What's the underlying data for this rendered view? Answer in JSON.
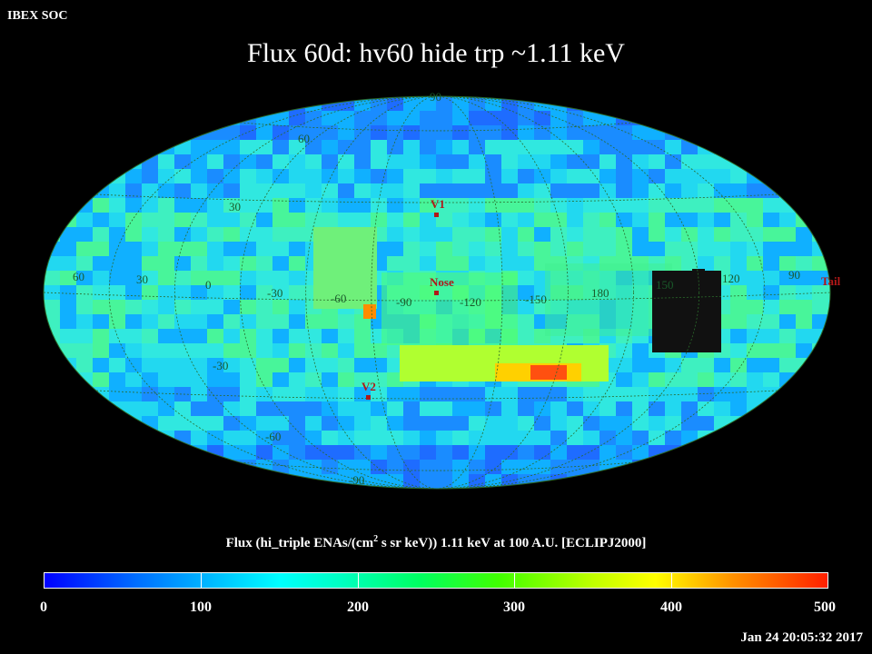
{
  "header": {
    "org": "IBEX SOC",
    "title": "Flux   60d: hv60 hide trp ~1.11 keV"
  },
  "map": {
    "projection": "Aitoff (ecliptic, J2000)",
    "markers": [
      "V1",
      "Nose",
      "V2",
      "Tail"
    ],
    "lon_labels": [
      "60",
      "30",
      "0",
      "-30",
      "-60",
      "-90",
      "-120",
      "-150",
      "180",
      "150",
      "120",
      "90"
    ],
    "lat_labels": [
      "90",
      "60",
      "30",
      "-30",
      "-60",
      "-90"
    ],
    "colors": {
      "background": "#000000",
      "marker": "#cc2222",
      "grid": "#2a6a2a",
      "masked": "#111111"
    }
  },
  "colorbar": {
    "title": "Flux (hi_triple ENAs/(cm",
    "title_sup": "2",
    "title_rest": " s sr keV))  1.11 keV at 100 A.U. [ECLIPJ2000]",
    "min": 0,
    "max": 500,
    "ticks": [
      "0",
      "100",
      "200",
      "300",
      "400",
      "500"
    ]
  },
  "footer": {
    "timestamp": "Jan 24 20:05:32 2017"
  }
}
